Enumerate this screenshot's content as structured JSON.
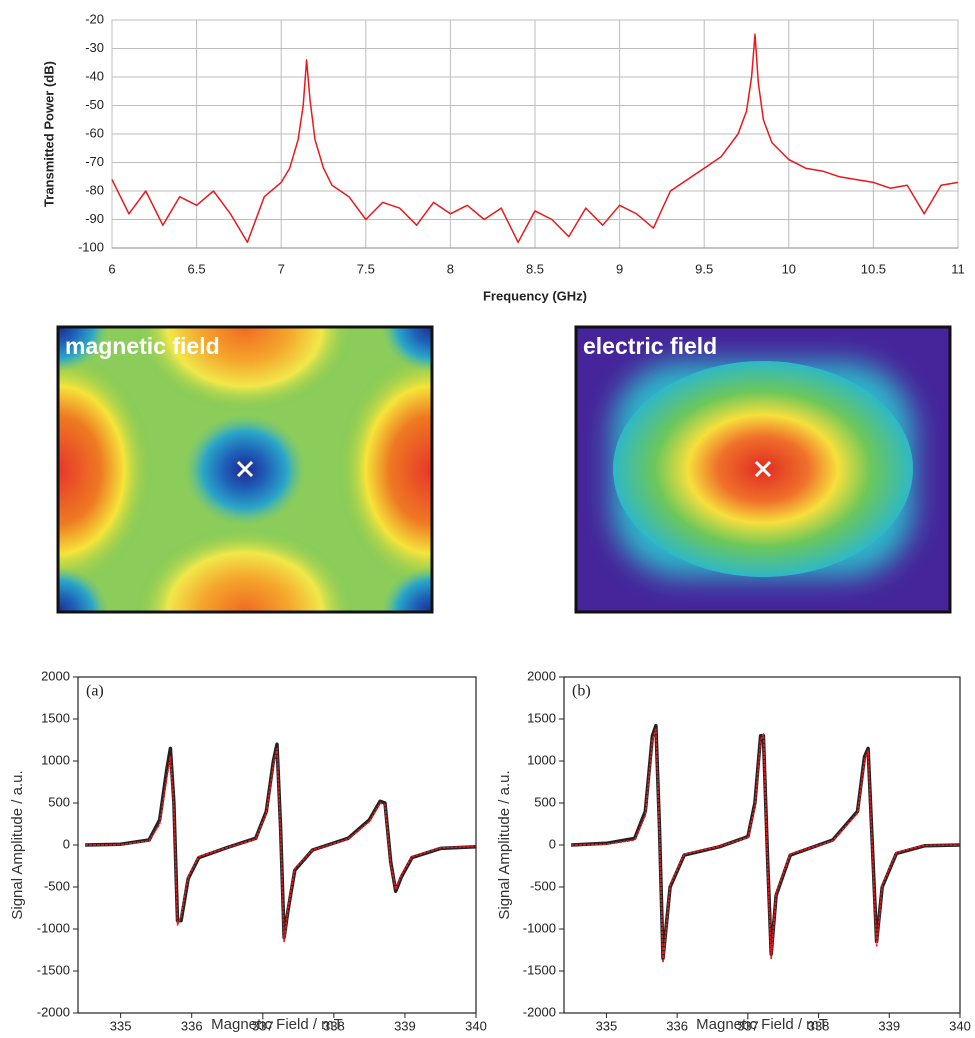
{
  "chart_data": [
    {
      "type": "line",
      "xlabel": "Frequency (GHz)",
      "ylabel": "Transmitted Power (dB)",
      "x": [
        6,
        6.1,
        6.2,
        6.3,
        6.4,
        6.5,
        6.6,
        6.7,
        6.8,
        6.9,
        7.0,
        7.05,
        7.1,
        7.13,
        7.15,
        7.17,
        7.2,
        7.25,
        7.3,
        7.4,
        7.5,
        7.6,
        7.7,
        7.8,
        7.9,
        8,
        8.1,
        8.2,
        8.3,
        8.4,
        8.5,
        8.6,
        8.7,
        8.8,
        8.9,
        9,
        9.1,
        9.2,
        9.3,
        9.4,
        9.5,
        9.6,
        9.7,
        9.75,
        9.78,
        9.8,
        9.82,
        9.85,
        9.9,
        10,
        10.1,
        10.2,
        10.3,
        10.4,
        10.5,
        10.6,
        10.7,
        10.8,
        10.9,
        11
      ],
      "series": [
        {
          "color": "#e8191d",
          "values": [
            -76,
            -88,
            -80,
            -92,
            -82,
            -85,
            -80,
            -88,
            -98,
            -82,
            -77,
            -72,
            -62,
            -50,
            -34,
            -48,
            -62,
            -72,
            -78,
            -82,
            -90,
            -84,
            -86,
            -92,
            -84,
            -88,
            -85,
            -90,
            -86,
            -98,
            -87,
            -90,
            -96,
            -86,
            -92,
            -85,
            -88,
            -93,
            -80,
            -76,
            -72,
            -68,
            -60,
            -52,
            -40,
            -25,
            -42,
            -55,
            -63,
            -69,
            -72,
            -73,
            -75,
            -76,
            -77,
            -79,
            -78,
            -88,
            -78,
            -77
          ]
        }
      ],
      "xlim": [
        6,
        11
      ],
      "xticks": [
        6,
        6.5,
        7,
        7.5,
        8,
        8.5,
        9,
        9.5,
        10,
        10.5,
        11
      ],
      "ylim": [
        -100,
        -20
      ],
      "yticks": [
        -100,
        -90,
        -80,
        -70,
        -60,
        -50,
        -40,
        -30,
        -20
      ],
      "grid": true
    },
    {
      "type": "line",
      "annotation": "(a)",
      "xlabel": "Magnetic Field / mT",
      "ylabel": "Signal Amplitude / a.u.",
      "x": [
        334.5,
        335.0,
        335.4,
        335.55,
        335.65,
        335.7,
        335.75,
        335.8,
        335.85,
        335.95,
        336.1,
        336.5,
        336.9,
        337.05,
        337.15,
        337.2,
        337.25,
        337.3,
        337.35,
        337.45,
        337.7,
        338.2,
        338.5,
        338.65,
        338.72,
        338.8,
        338.87,
        338.95,
        339.1,
        339.5,
        340
      ],
      "series": [
        {
          "color": "#222222",
          "values": [
            0,
            10,
            60,
            300,
            900,
            1150,
            500,
            -900,
            -900,
            -400,
            -150,
            -30,
            80,
            400,
            1000,
            1200,
            200,
            -1100,
            -800,
            -300,
            -60,
            80,
            300,
            520,
            500,
            -200,
            -550,
            -380,
            -150,
            -40,
            -20
          ]
        },
        {
          "color": "#e8191d",
          "values": [
            0,
            5,
            50,
            250,
            800,
            1050,
            450,
            -950,
            -850,
            -380,
            -140,
            -30,
            70,
            380,
            950,
            1150,
            150,
            -1150,
            -780,
            -280,
            -60,
            70,
            280,
            500,
            480,
            -220,
            -530,
            -360,
            -140,
            -35,
            -15
          ]
        }
      ],
      "xlim": [
        334.4,
        340
      ],
      "xticks": [
        335,
        336,
        337,
        338,
        339,
        340
      ],
      "ylim": [
        -2000,
        2000
      ],
      "yticks": [
        -2000,
        -1500,
        -1000,
        -500,
        0,
        500,
        1000,
        1500,
        2000
      ],
      "grid": false
    },
    {
      "type": "line",
      "annotation": "(b)",
      "xlabel": "Magnetic Field / mT",
      "ylabel": "Signal Amplitude / a.u.",
      "x": [
        334.5,
        335,
        335.4,
        335.55,
        335.65,
        335.7,
        335.75,
        335.8,
        335.9,
        336.1,
        336.6,
        337.0,
        337.1,
        337.18,
        337.22,
        337.28,
        337.33,
        337.4,
        337.6,
        338.2,
        338.55,
        338.65,
        338.7,
        338.75,
        338.82,
        338.9,
        339.1,
        339.5,
        340
      ],
      "series": [
        {
          "color": "#222222",
          "values": [
            0,
            20,
            80,
            400,
            1300,
            1420,
            200,
            -1350,
            -500,
            -120,
            -20,
            100,
            500,
            1300,
            1300,
            -200,
            -1300,
            -600,
            -120,
            60,
            400,
            1050,
            1150,
            200,
            -1150,
            -500,
            -100,
            -10,
            0
          ]
        },
        {
          "color": "#e8191d",
          "values": [
            0,
            10,
            60,
            350,
            1250,
            1380,
            150,
            -1400,
            -480,
            -110,
            -15,
            90,
            450,
            1250,
            1320,
            -250,
            -1350,
            -580,
            -110,
            50,
            380,
            1000,
            1120,
            150,
            -1200,
            -480,
            -90,
            -5,
            0
          ]
        }
      ],
      "xlim": [
        334.4,
        340
      ],
      "xticks": [
        335,
        336,
        337,
        338,
        339,
        340
      ],
      "ylim": [
        -2000,
        2000
      ],
      "yticks": [
        -2000,
        -1500,
        -1000,
        -500,
        0,
        500,
        1000,
        1500,
        2000
      ],
      "grid": false
    }
  ],
  "field_maps": [
    {
      "label": "magnetic field"
    },
    {
      "label": "electric field"
    }
  ]
}
